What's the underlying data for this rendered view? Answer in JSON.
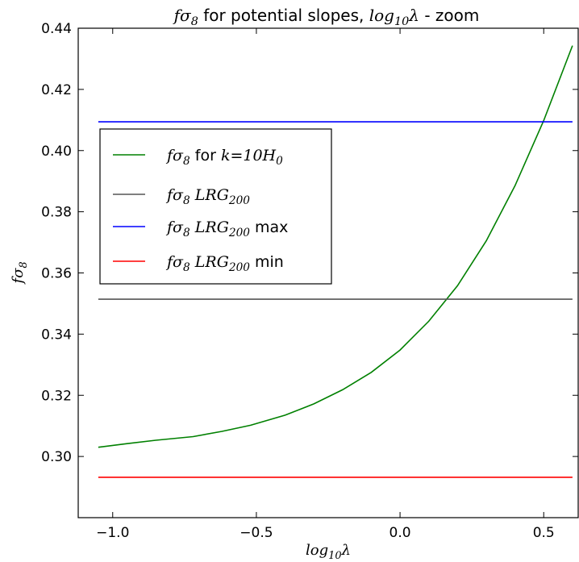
{
  "chart_data": {
    "type": "line",
    "title": {
      "math": "fσ",
      "math_sub": "8",
      "text_mid": " for potential slopes, ",
      "math2": "log",
      "math2_sub": "10",
      "math2_tail": "λ",
      "text_end": " - zoom"
    },
    "xlabel": {
      "math": "log",
      "sub": "10",
      "tail": "λ"
    },
    "ylabel": {
      "math": "fσ",
      "sub": "8"
    },
    "xlim": [
      -1.12,
      0.62
    ],
    "ylim": [
      0.28,
      0.44
    ],
    "xticks": [
      -1.0,
      -0.5,
      0.0,
      0.5
    ],
    "xtick_labels": [
      "−1.0",
      "−0.5",
      "0.0",
      "0.5"
    ],
    "yticks": [
      0.3,
      0.32,
      0.34,
      0.36,
      0.38,
      0.4,
      0.42,
      0.44
    ],
    "ytick_labels": [
      "0.30",
      "0.32",
      "0.34",
      "0.36",
      "0.38",
      "0.40",
      "0.42",
      "0.44"
    ],
    "grid": false,
    "legend_position": "upper-left",
    "series": [
      {
        "legend_parts": [
          [
            "m",
            "fσ"
          ],
          [
            "sub",
            "8"
          ],
          [
            "t",
            " for "
          ],
          [
            "m",
            "k"
          ],
          [
            "t",
            "="
          ],
          [
            "m",
            "10H"
          ],
          [
            "sub",
            "0"
          ]
        ],
        "color": "#008000",
        "x": [
          -1.05,
          -0.95,
          -0.85,
          -0.72,
          -0.62,
          -0.52,
          -0.4,
          -0.3,
          -0.2,
          -0.1,
          0.0,
          0.1,
          0.2,
          0.3,
          0.4,
          0.5,
          0.6
        ],
        "y": [
          0.303,
          0.3042,
          0.3053,
          0.3065,
          0.3082,
          0.3102,
          0.3135,
          0.3172,
          0.3218,
          0.3275,
          0.3348,
          0.3442,
          0.3558,
          0.3705,
          0.3885,
          0.4098,
          0.4343
        ]
      },
      {
        "legend_parts": [
          [
            "m",
            "fσ"
          ],
          [
            "sub",
            "8"
          ],
          [
            "t",
            " "
          ],
          [
            "m",
            "LRG"
          ],
          [
            "sub",
            "200"
          ]
        ],
        "color": "#555555",
        "x": [
          -1.05,
          0.6
        ],
        "y": [
          0.3514,
          0.3514
        ]
      },
      {
        "legend_parts": [
          [
            "m",
            "fσ"
          ],
          [
            "sub",
            "8"
          ],
          [
            "t",
            " "
          ],
          [
            "m",
            "LRG"
          ],
          [
            "sub",
            "200"
          ],
          [
            "t",
            " max"
          ]
        ],
        "color": "#0000ff",
        "x": [
          -1.05,
          0.6
        ],
        "y": [
          0.4094,
          0.4094
        ]
      },
      {
        "legend_parts": [
          [
            "m",
            "fσ"
          ],
          [
            "sub",
            "8"
          ],
          [
            "t",
            " "
          ],
          [
            "m",
            "LRG"
          ],
          [
            "sub",
            "200"
          ],
          [
            "t",
            " min"
          ]
        ],
        "color": "#ff0000",
        "x": [
          -1.05,
          0.6
        ],
        "y": [
          0.2932,
          0.2932
        ]
      }
    ]
  }
}
